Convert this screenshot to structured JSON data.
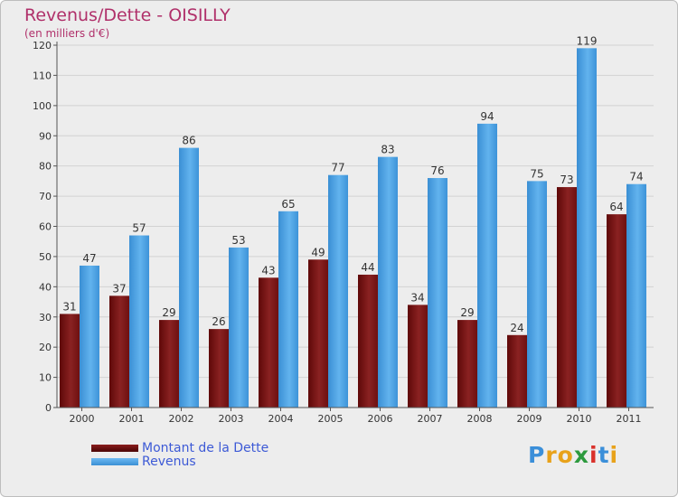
{
  "header": {
    "title": "Revenus/Dette - OISILLY",
    "subtitle": "(en milliers d'€)"
  },
  "chart_data": {
    "type": "bar",
    "categories": [
      "2000",
      "2001",
      "2002",
      "2003",
      "2004",
      "2005",
      "2006",
      "2007",
      "2008",
      "2009",
      "2010",
      "2011"
    ],
    "series": [
      {
        "name": "Montant de la Dette",
        "values": [
          31,
          37,
          29,
          26,
          43,
          49,
          44,
          34,
          29,
          24,
          73,
          64
        ],
        "color": "#7a1414"
      },
      {
        "name": "Revenus",
        "values": [
          47,
          57,
          86,
          53,
          65,
          77,
          83,
          76,
          94,
          75,
          119,
          74
        ],
        "color": "#4da3e6"
      }
    ],
    "title": "Revenus/Dette - OISILLY",
    "ylabel": "(en milliers d'€)",
    "ylim": [
      0,
      120
    ],
    "yticks": [
      0,
      10,
      20,
      30,
      40,
      50,
      60,
      70,
      80,
      90,
      100,
      110,
      120
    ],
    "grid": true,
    "legend": "bottom-left",
    "data_labels": true
  },
  "logo": {
    "letters": [
      "P",
      "r",
      "o",
      "x",
      "i",
      "t",
      "i"
    ],
    "colors": [
      "#3b8fd9",
      "#e8a21a",
      "#e8a21a",
      "#2d9a3e",
      "#d9312b",
      "#3b8fd9",
      "#e8a21a"
    ]
  }
}
